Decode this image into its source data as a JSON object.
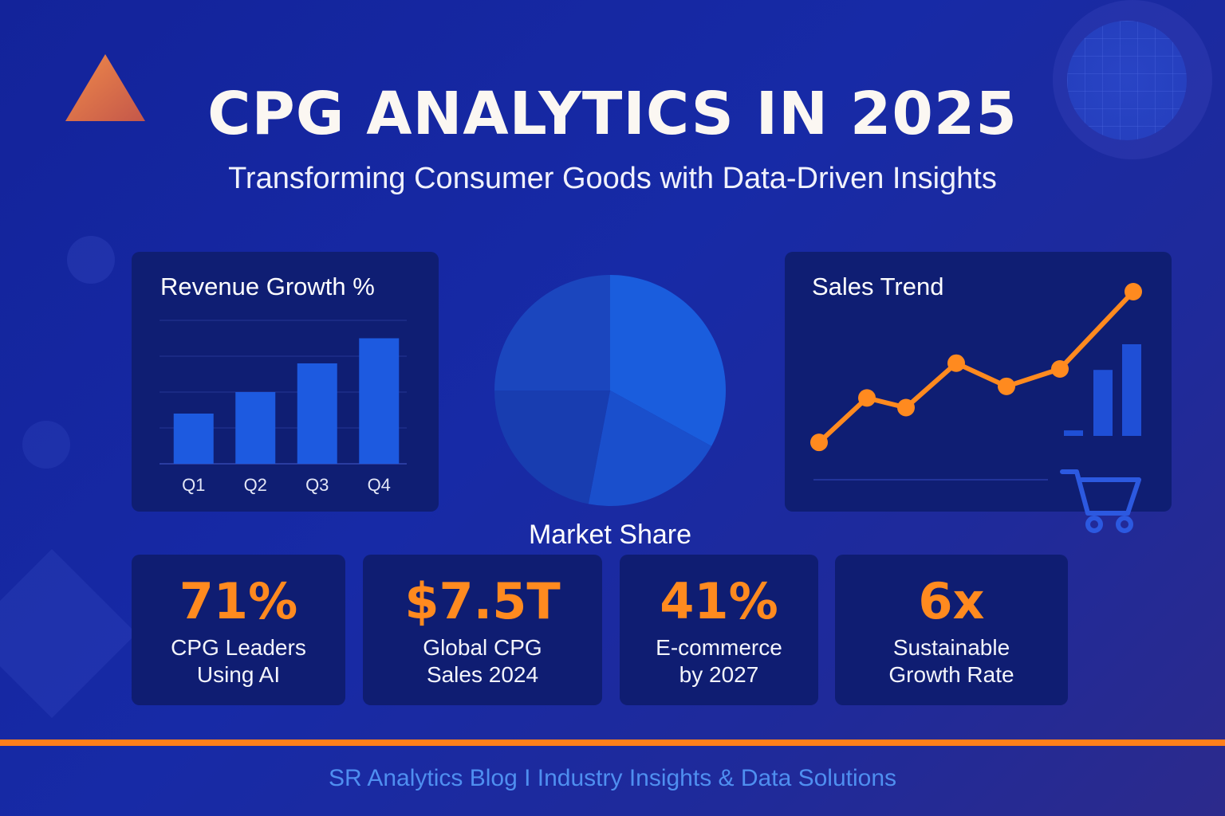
{
  "header": {
    "title": "CPG ANALYTICS IN 2025",
    "subtitle": "Transforming Consumer Goods with Data-Driven Insights"
  },
  "colors": {
    "background": "#172aa6",
    "panel": "#0f1e73",
    "accent_orange": "#ff8a1f",
    "bar_blue": "#1d5ae0",
    "footer_text": "#4f8ff0"
  },
  "chart_data": [
    {
      "type": "bar",
      "title": "Revenue Growth %",
      "categories": [
        "Q1",
        "Q2",
        "Q3",
        "Q4"
      ],
      "values": [
        14,
        20,
        28,
        35
      ],
      "ylim": [
        0,
        40
      ],
      "grid": true
    },
    {
      "type": "pie",
      "title": "Market Share",
      "slices": [
        {
          "value": 33
        },
        {
          "value": 20
        },
        {
          "value": 22
        },
        {
          "value": 25
        }
      ],
      "colors": [
        "#1a5ddd",
        "#1a4fcc",
        "#183db0",
        "#1b46be"
      ]
    },
    {
      "type": "line",
      "title": "Sales Trend",
      "x": [
        1,
        2,
        3,
        4,
        5,
        6,
        7
      ],
      "values": [
        2,
        25,
        20,
        43,
        31,
        40,
        80
      ],
      "ylim": [
        0,
        80
      ],
      "mini_bars": [
        0.06,
        0.72,
        1.0
      ]
    }
  ],
  "stats": [
    {
      "value": "71%",
      "label_line1": "CPG Leaders",
      "label_line2": "Using AI"
    },
    {
      "value": "$7.5T",
      "label_line1": "Global CPG",
      "label_line2": "Sales 2024"
    },
    {
      "value": "41%",
      "label_line1": "E-commerce",
      "label_line2": "by 2027"
    },
    {
      "value": "6x",
      "label_line1": "Sustainable",
      "label_line2": "Growth Rate"
    }
  ],
  "icons": [
    "triangle-icon",
    "shopping-cart-icon"
  ],
  "footer": {
    "text": "SR Analytics Blog I Industry Insights & Data Solutions"
  }
}
